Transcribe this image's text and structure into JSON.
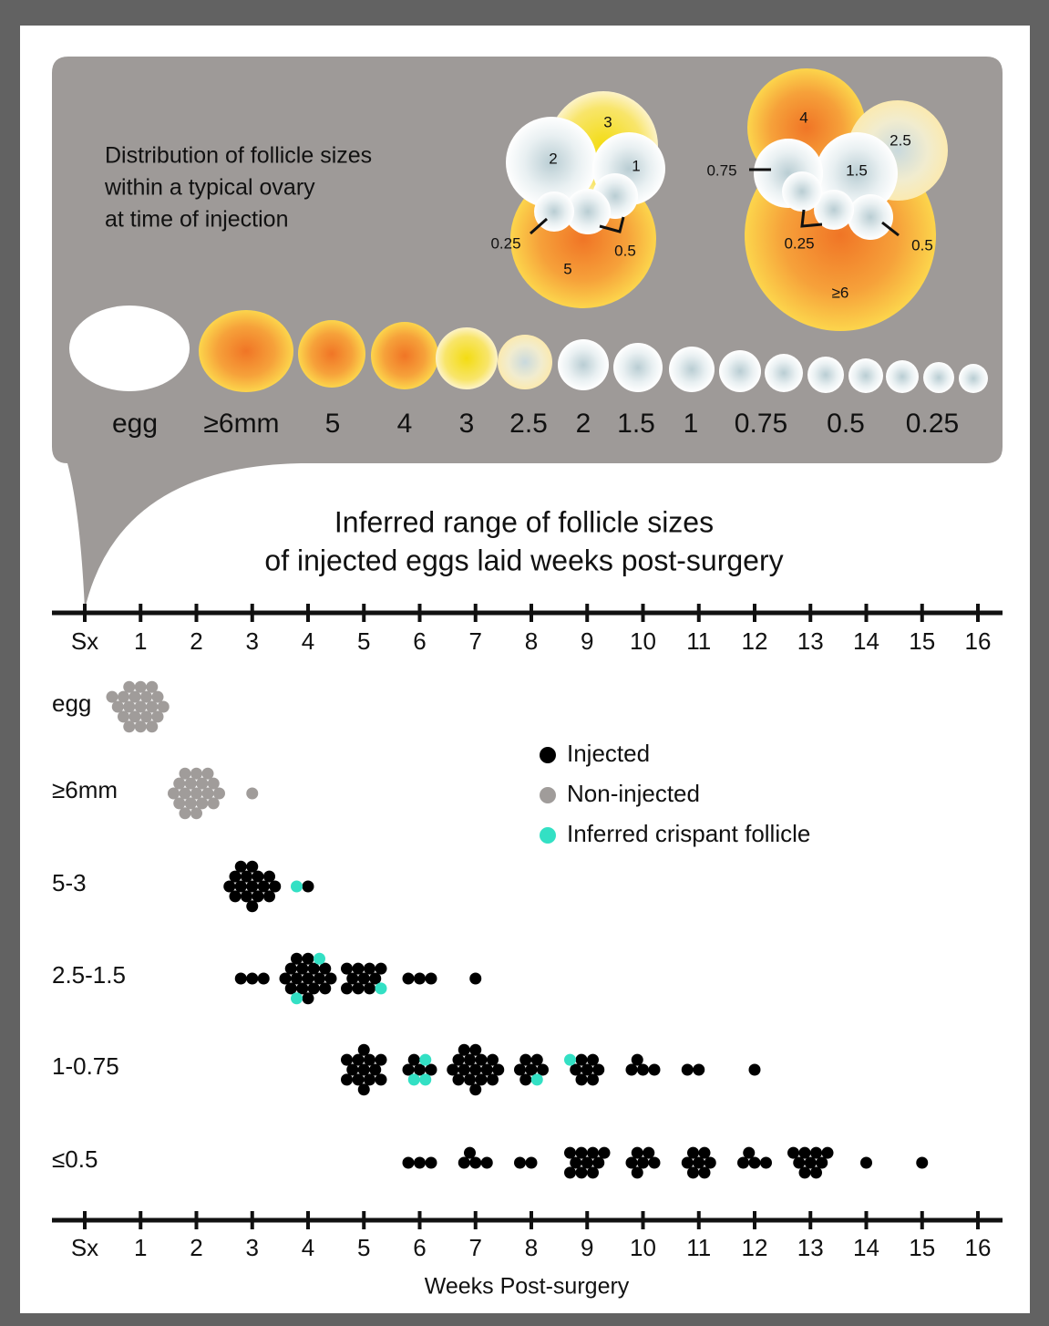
{
  "header": {
    "title_lines": [
      "Distribution of follicle sizes",
      "within a typical ovary",
      "at time of injection"
    ]
  },
  "ovary_diagrams": [
    {
      "labels": [
        "3",
        "2",
        "1",
        "0.25",
        "0.5",
        "5"
      ]
    },
    {
      "labels": [
        "4",
        "2.5",
        "1.5",
        "0.75",
        "0.25",
        "0.5",
        "≥6"
      ]
    }
  ],
  "follicle_scale": [
    "egg",
    "≥6mm",
    "5",
    "4",
    "3",
    "2.5",
    "2",
    "1.5",
    "1",
    "0.75",
    "0.5",
    "0.25"
  ],
  "plot": {
    "title_lines": [
      "Inferred range of follicle sizes",
      "of injected eggs laid weeks post-surgery"
    ],
    "x_ticks": [
      "Sx",
      "1",
      "2",
      "3",
      "4",
      "5",
      "6",
      "7",
      "8",
      "9",
      "10",
      "11",
      "12",
      "13",
      "14",
      "15",
      "16"
    ],
    "x_label": "Weeks Post-surgery",
    "legend": [
      {
        "name": "Injected",
        "color": "#000000"
      },
      {
        "name": "Non-injected",
        "color": "#a09c9a"
      },
      {
        "name": "Inferred crispant follicle",
        "color": "#33e0c4"
      }
    ],
    "rows": [
      {
        "label": "egg",
        "groups": [
          {
            "week": 1,
            "counts": [
              0,
              20,
              0
            ]
          }
        ]
      },
      {
        "label": "≥6mm",
        "groups": [
          {
            "week": 2,
            "counts": [
              0,
              18,
              0
            ]
          },
          {
            "week": 3,
            "counts": [
              0,
              1,
              0
            ]
          }
        ]
      },
      {
        "label": "5-3",
        "groups": [
          {
            "week": 3,
            "counts": [
              16,
              0,
              0
            ]
          },
          {
            "week": 4,
            "counts": [
              1,
              0,
              1
            ]
          }
        ]
      },
      {
        "label": "2.5-1.5",
        "groups": [
          {
            "week": 3,
            "counts": [
              3,
              0,
              0
            ]
          },
          {
            "week": 4,
            "counts": [
              16,
              0,
              2
            ]
          },
          {
            "week": 5,
            "counts": [
              10,
              0,
              1
            ]
          },
          {
            "week": 6,
            "counts": [
              3,
              0,
              0
            ]
          },
          {
            "week": 7,
            "counts": [
              1,
              0,
              0
            ]
          }
        ]
      },
      {
        "label": "1-0.75",
        "groups": [
          {
            "week": 5,
            "counts": [
              13,
              0,
              0
            ]
          },
          {
            "week": 6,
            "counts": [
              4,
              0,
              3
            ]
          },
          {
            "week": 7,
            "counts": [
              16,
              0,
              0
            ]
          },
          {
            "week": 8,
            "counts": [
              6,
              0,
              1
            ]
          },
          {
            "week": 9,
            "counts": [
              7,
              0,
              1
            ]
          },
          {
            "week": 10,
            "counts": [
              4,
              0,
              0
            ]
          },
          {
            "week": 11,
            "counts": [
              2,
              0,
              0
            ]
          },
          {
            "week": 12,
            "counts": [
              1,
              0,
              0
            ]
          }
        ]
      },
      {
        "label": "≤0.5",
        "groups": [
          {
            "week": 6,
            "counts": [
              3,
              0,
              0
            ]
          },
          {
            "week": 7,
            "counts": [
              4,
              0,
              0
            ]
          },
          {
            "week": 8,
            "counts": [
              2,
              0,
              0
            ]
          },
          {
            "week": 9,
            "counts": [
              10,
              0,
              0
            ]
          },
          {
            "week": 10,
            "counts": [
              6,
              0,
              0
            ]
          },
          {
            "week": 11,
            "counts": [
              7,
              0,
              0
            ]
          },
          {
            "week": 12,
            "counts": [
              4,
              0,
              0
            ]
          },
          {
            "week": 13,
            "counts": [
              9,
              0,
              0
            ]
          },
          {
            "week": 14,
            "counts": [
              1,
              0,
              0
            ]
          },
          {
            "week": 15,
            "counts": [
              1,
              0,
              0
            ]
          }
        ]
      }
    ]
  }
}
